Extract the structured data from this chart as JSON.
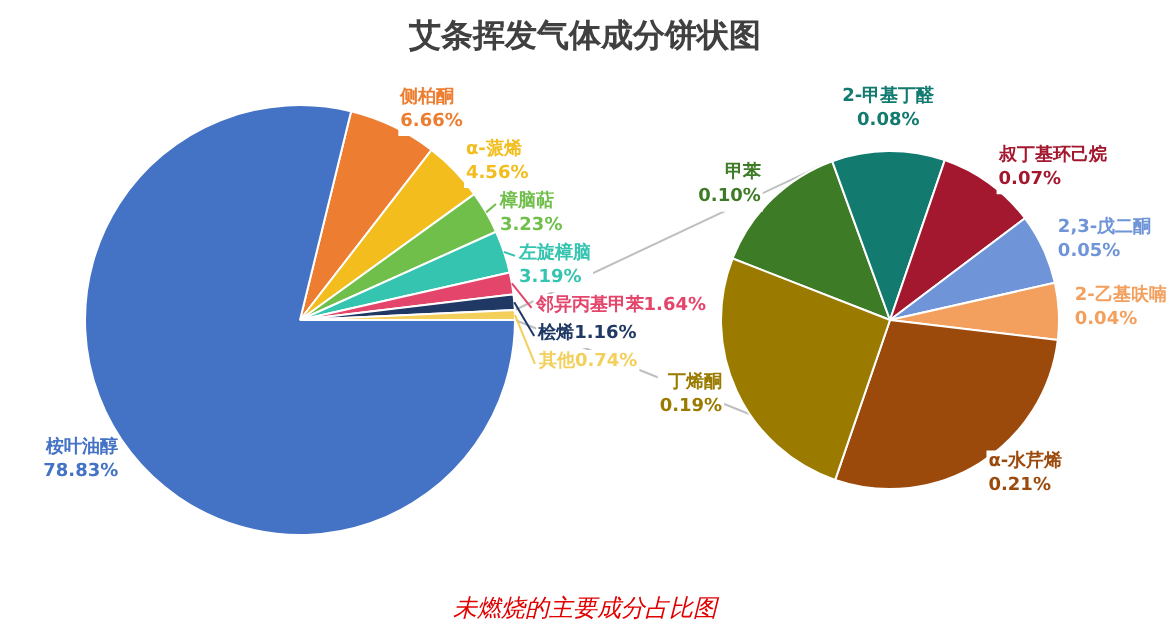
{
  "chart_data": [
    {
      "type": "pie",
      "title": "艾条挥发气体成分饼状图",
      "categories": [
        "侧柏酮",
        "α-蒎烯",
        "樟脑萜",
        "左旋樟脑",
        "邻异丙基甲苯",
        "桧烯",
        "其他",
        "桉叶油醇"
      ],
      "values": [
        6.66,
        4.56,
        3.23,
        3.19,
        1.64,
        1.16,
        0.74,
        78.83
      ],
      "colors": [
        "#ed7d31",
        "#f2bd1d",
        "#6fbf4a",
        "#35c4b0",
        "#e4456b",
        "#1f3864",
        "#f3cf5c",
        "#4472c4"
      ],
      "value_labels": [
        "6.66%",
        "4.56%",
        "3.23%",
        "3.19%",
        "1.64%",
        "1.16%",
        "0.74%",
        "78.83%"
      ],
      "annotations": [
        "未燃烧的主要成分占比图"
      ]
    },
    {
      "type": "pie",
      "categories": [
        "甲苯",
        "2-甲基丁醛",
        "叔丁基环己烷",
        "2,3-戊二酮",
        "2-乙基呋喃",
        "α-水芹烯",
        "丁烯酮"
      ],
      "values": [
        0.1,
        0.08,
        0.07,
        0.05,
        0.04,
        0.21,
        0.19
      ],
      "colors": [
        "#3e7b27",
        "#127a6e",
        "#a3172f",
        "#6f95d8",
        "#f3a05e",
        "#9c4a0c",
        "#9a7b00"
      ],
      "value_labels": [
        "0.10%",
        "0.08%",
        "0.07%",
        "0.05%",
        "0.04%",
        "0.21%",
        "0.19%"
      ]
    }
  ]
}
